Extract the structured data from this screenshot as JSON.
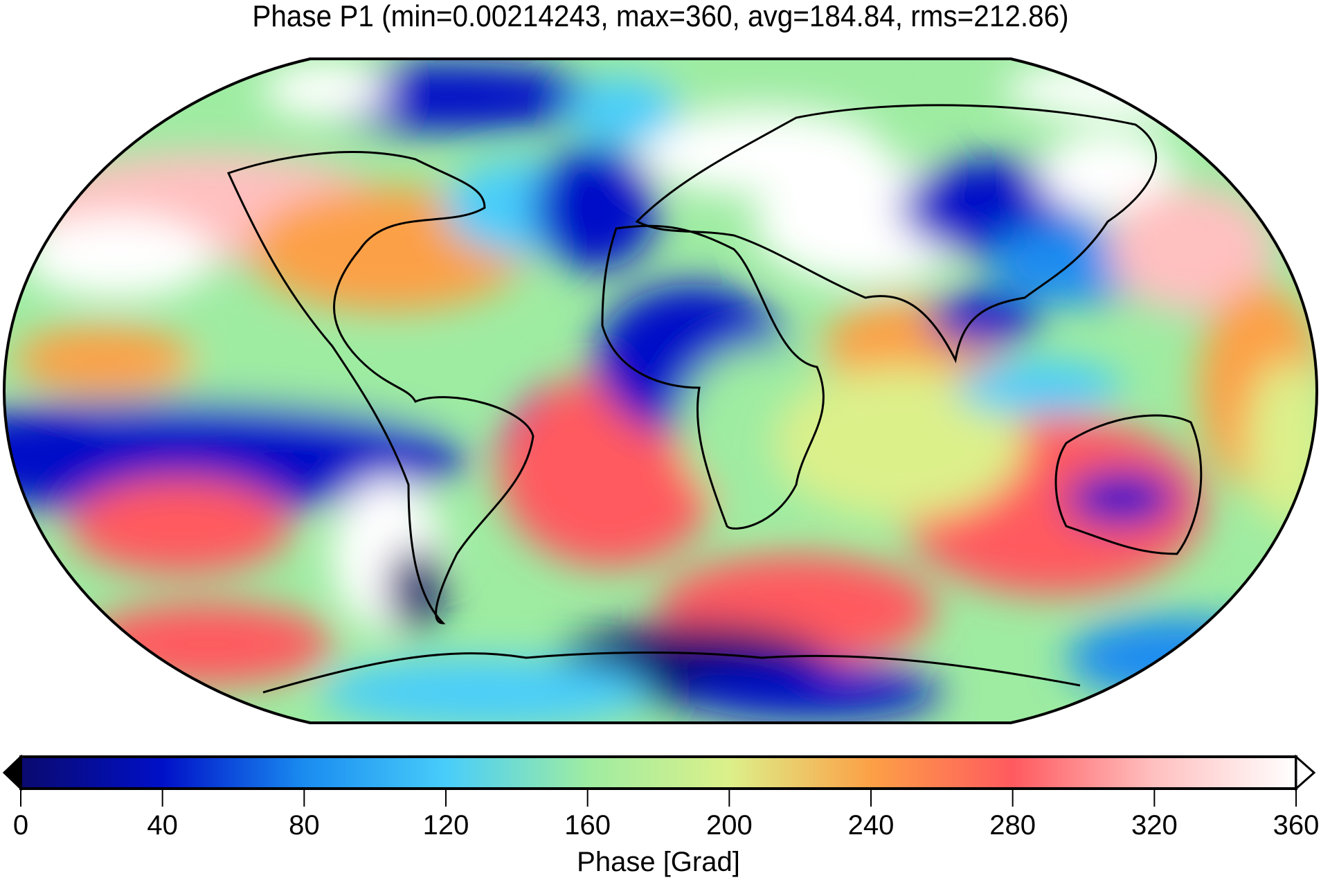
{
  "chart_data": {
    "type": "heatmap",
    "title": "Phase P1 (min=0.00214243, max=360, avg=184.84, rms=212.86)",
    "projection": "Robinson",
    "value_range": [
      0,
      360
    ],
    "colorbar": {
      "label": "Phase [Grad]",
      "ticks": [
        "0",
        "40",
        "80",
        "120",
        "160",
        "200",
        "240",
        "280",
        "320",
        "360"
      ],
      "tick_values": [
        0,
        40,
        80,
        120,
        160,
        200,
        240,
        280,
        320,
        360
      ],
      "orientation": "horizontal",
      "placement": "bottom",
      "extend": "both",
      "colors": [
        {
          "value": 0,
          "color": "#0a0a6e"
        },
        {
          "value": 40,
          "color": "#0010c8"
        },
        {
          "value": 80,
          "color": "#1a8cf0"
        },
        {
          "value": 120,
          "color": "#48cdfa"
        },
        {
          "value": 160,
          "color": "#9eeca2"
        },
        {
          "value": 200,
          "color": "#dcf08a"
        },
        {
          "value": 240,
          "color": "#fca046"
        },
        {
          "value": 280,
          "color": "#ff5a5f"
        },
        {
          "value": 320,
          "color": "#ffc0c0"
        },
        {
          "value": 360,
          "color": "#ffffff"
        }
      ]
    }
  }
}
